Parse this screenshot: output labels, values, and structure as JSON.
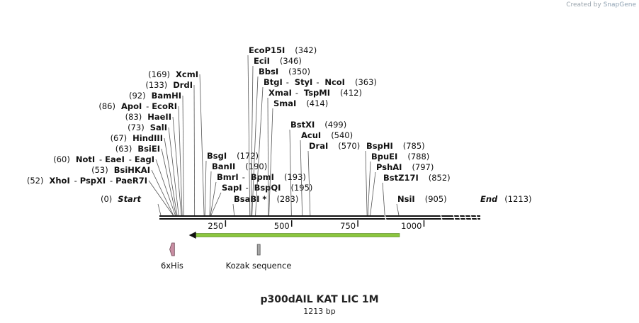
{
  "credit": {
    "prefix": "Created by",
    "brand": "SnapGene"
  },
  "plasmid": {
    "name": "p300dAIL KAT LIC 1M",
    "length_text": "1213 bp",
    "length": 1213
  },
  "start_label": {
    "name": "Start",
    "pos": "(0)"
  },
  "end_label": {
    "name": "End",
    "pos": "(1213)"
  },
  "ticks": [
    {
      "value": 250,
      "label": "250"
    },
    {
      "value": 500,
      "label": "500"
    },
    {
      "value": 750,
      "label": "750"
    },
    {
      "value": 1000,
      "label": "1000"
    }
  ],
  "left_sites": [
    {
      "names": [
        "XhoI",
        "PspXI",
        "PaeR7I"
      ],
      "pos": "(52)",
      "at": 52
    },
    {
      "names": [
        "BsiHKAI"
      ],
      "pos": "(53)",
      "at": 53
    },
    {
      "names": [
        "NotI",
        "EaeI",
        "EagI"
      ],
      "pos": "(60)",
      "at": 60
    },
    {
      "names": [
        "BsiEI"
      ],
      "pos": "(63)",
      "at": 63
    },
    {
      "names": [
        "HindIII"
      ],
      "pos": "(67)",
      "at": 67
    },
    {
      "names": [
        "SalI"
      ],
      "pos": "(73)",
      "at": 73
    },
    {
      "names": [
        "HaeII"
      ],
      "pos": "(83)",
      "at": 83
    },
    {
      "names": [
        "ApoI",
        "EcoRI"
      ],
      "pos": "(86)",
      "at": 86
    },
    {
      "names": [
        "BamHI"
      ],
      "pos": "(92)",
      "at": 92
    },
    {
      "names": [
        "DrdI"
      ],
      "pos": "(133)",
      "at": 133
    },
    {
      "names": [
        "XcmI"
      ],
      "pos": "(169)",
      "at": 169
    }
  ],
  "right_sites": [
    {
      "names": [
        "BsaBI *"
      ],
      "pos": "(283)",
      "at": 283
    },
    {
      "names": [
        "SapI",
        "BspQI"
      ],
      "pos": "(195)",
      "at": 195
    },
    {
      "names": [
        "BmrI",
        "BpmI"
      ],
      "pos": "(193)",
      "at": 193
    },
    {
      "names": [
        "BanII"
      ],
      "pos": "(190)",
      "at": 190
    },
    {
      "names": [
        "BsgI"
      ],
      "pos": "(172)",
      "at": 172
    },
    {
      "names": [
        "SmaI"
      ],
      "pos": "(414)",
      "at": 414
    },
    {
      "names": [
        "XmaI",
        "TspMI"
      ],
      "pos": "(412)",
      "at": 412
    },
    {
      "names": [
        "BtgI",
        "StyI",
        "NcoI"
      ],
      "pos": "(363)",
      "at": 363
    },
    {
      "names": [
        "BbsI"
      ],
      "pos": "(350)",
      "at": 350
    },
    {
      "names": [
        "EciI"
      ],
      "pos": "(346)",
      "at": 346
    },
    {
      "names": [
        "EcoP15I"
      ],
      "pos": "(342)",
      "at": 342
    },
    {
      "names": [
        "DraI"
      ],
      "pos": "(570)",
      "at": 570
    },
    {
      "names": [
        "AcuI"
      ],
      "pos": "(540)",
      "at": 540
    },
    {
      "names": [
        "BstXI"
      ],
      "pos": "(499)",
      "at": 499
    },
    {
      "names": [
        "NsiI"
      ],
      "pos": "(905)",
      "at": 905
    },
    {
      "names": [
        "BstZ17I"
      ],
      "pos": "(852)",
      "at": 852
    },
    {
      "names": [
        "PshAI"
      ],
      "pos": "(797)",
      "at": 797
    },
    {
      "names": [
        "BpuEI"
      ],
      "pos": "(788)",
      "at": 788
    },
    {
      "names": [
        "BspHI"
      ],
      "pos": "(785)",
      "at": 785
    }
  ],
  "features": [
    {
      "name": "6xHis",
      "start": 39,
      "end": 57,
      "shape": "arrow-left",
      "color": "#c98ea3"
    },
    {
      "name": "Kozak sequence",
      "start": 370,
      "end": 380,
      "shape": "box",
      "color": "#a8a8a8"
    }
  ],
  "orf": {
    "start": 125,
    "end": 905,
    "direction": "left",
    "color": "#8cc63f"
  }
}
